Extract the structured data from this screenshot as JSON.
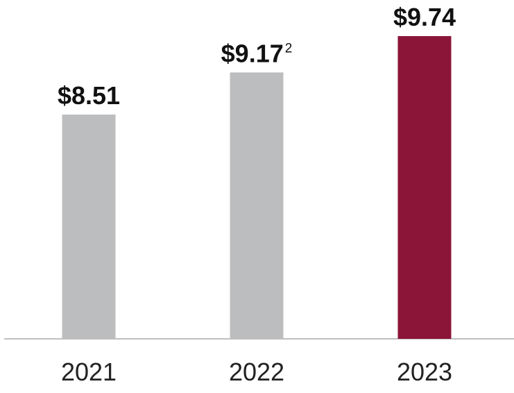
{
  "chart_data": {
    "type": "bar",
    "categories": [
      "2021",
      "2022",
      "2023"
    ],
    "values": [
      8.51,
      9.17,
      9.74
    ],
    "value_labels": [
      "$8.51",
      "$9.17",
      "$9.74"
    ],
    "value_label_superscripts": [
      "",
      "2",
      ""
    ],
    "title": "",
    "xlabel": "",
    "ylabel": "",
    "grid": false,
    "bar_colors": [
      "#bcbdbe",
      "#bcbdbe",
      "#8b1538"
    ],
    "axis_color": "#bfbfbf"
  }
}
